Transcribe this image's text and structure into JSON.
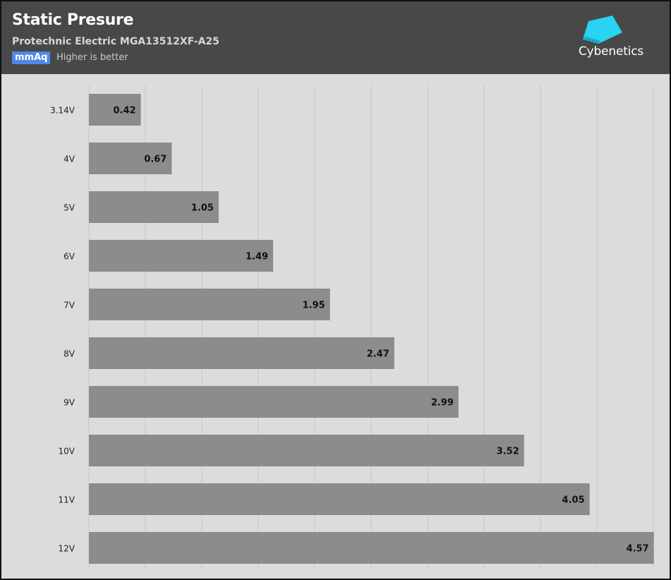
{
  "header": {
    "title": "Static Presure",
    "subtitle": "Protechnic Electric MGA13512XF-A25",
    "unit": "mmAq",
    "note": "Higher is better",
    "logo_text": "Cybenetics"
  },
  "colors": {
    "header_bg": "#484848",
    "plot_bg": "#dcdcdc",
    "bar": "#8c8c8c",
    "unit_badge": "#4f88e8",
    "logo_accent": "#29d4f2"
  },
  "chart_data": {
    "type": "bar",
    "orientation": "horizontal",
    "categories": [
      "3.14V",
      "4V",
      "5V",
      "6V",
      "7V",
      "8V",
      "9V",
      "10V",
      "11V",
      "12V"
    ],
    "values": [
      0.42,
      0.67,
      1.05,
      1.49,
      1.95,
      2.47,
      2.99,
      3.52,
      4.05,
      4.57
    ],
    "value_labels": [
      "0.42",
      "0.67",
      "1.05",
      "1.49",
      "1.95",
      "2.47",
      "2.99",
      "3.52",
      "4.05",
      "4.57"
    ],
    "xlim": [
      0,
      4.6
    ],
    "grid": true,
    "x_ticks_shown": false
  }
}
